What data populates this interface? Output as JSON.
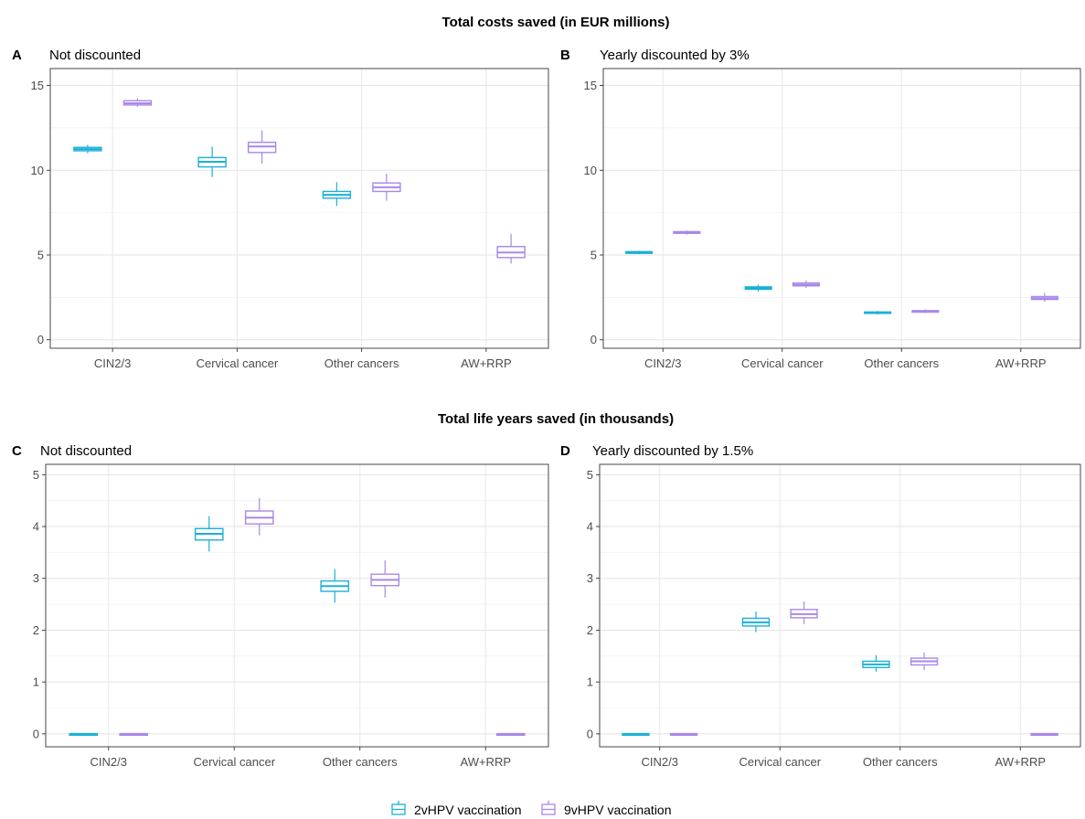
{
  "figure": {
    "title_costs": "Total costs saved (in EUR millions)",
    "title_life": "Total life years saved (in thousands)"
  },
  "legend": {
    "items": [
      {
        "label": "2vHPV vaccination",
        "color": "#1ab0d8"
      },
      {
        "label": "9vHPV vaccination",
        "color": "#a888e8"
      }
    ]
  },
  "colors": {
    "2vHPV": "#1ab0d8",
    "9vHPV": "#a888e8"
  },
  "chart_data": [
    {
      "type": "box",
      "panel": "A",
      "subtitle": "Not discounted",
      "categories": [
        "CIN2/3",
        "Cervical cancer",
        "Other cancers",
        "AW+RRP"
      ],
      "ylim": [
        -0.5,
        16
      ],
      "yticks": [
        0,
        5,
        10,
        15
      ],
      "grid": true,
      "series": [
        {
          "name": "2vHPV vaccination",
          "boxes": [
            {
              "min": 11.0,
              "q1": 11.15,
              "median": 11.25,
              "q3": 11.35,
              "max": 11.5
            },
            {
              "min": 9.6,
              "q1": 10.2,
              "median": 10.5,
              "q3": 10.75,
              "max": 11.4
            },
            {
              "min": 7.9,
              "q1": 8.35,
              "median": 8.55,
              "q3": 8.75,
              "max": 9.3
            },
            null
          ]
        },
        {
          "name": "9vHPV vaccination",
          "boxes": [
            {
              "min": 13.75,
              "q1": 13.85,
              "median": 13.95,
              "q3": 14.1,
              "max": 14.25
            },
            {
              "min": 10.4,
              "q1": 11.05,
              "median": 11.4,
              "q3": 11.65,
              "max": 12.35
            },
            {
              "min": 8.2,
              "q1": 8.75,
              "median": 9.0,
              "q3": 9.25,
              "max": 9.8
            },
            {
              "min": 4.5,
              "q1": 4.85,
              "median": 5.15,
              "q3": 5.5,
              "max": 6.25
            }
          ]
        }
      ]
    },
    {
      "type": "box",
      "panel": "B",
      "subtitle": "Yearly discounted by 3%",
      "categories": [
        "CIN2/3",
        "Cervical cancer",
        "Other cancers",
        "AW+RRP"
      ],
      "ylim": [
        -0.5,
        16
      ],
      "yticks": [
        0,
        5,
        10,
        15
      ],
      "grid": true,
      "series": [
        {
          "name": "2vHPV vaccination",
          "boxes": [
            {
              "min": 5.05,
              "q1": 5.1,
              "median": 5.15,
              "q3": 5.2,
              "max": 5.25
            },
            {
              "min": 2.85,
              "q1": 2.98,
              "median": 3.05,
              "q3": 3.12,
              "max": 3.25
            },
            {
              "min": 1.5,
              "q1": 1.56,
              "median": 1.6,
              "q3": 1.64,
              "max": 1.7
            },
            null
          ]
        },
        {
          "name": "9vHPV vaccination",
          "boxes": [
            {
              "min": 6.2,
              "q1": 6.28,
              "median": 6.33,
              "q3": 6.38,
              "max": 6.45
            },
            {
              "min": 3.05,
              "q1": 3.18,
              "median": 3.25,
              "q3": 3.35,
              "max": 3.5
            },
            {
              "min": 1.58,
              "q1": 1.63,
              "median": 1.67,
              "q3": 1.72,
              "max": 1.8
            },
            {
              "min": 2.25,
              "q1": 2.38,
              "median": 2.45,
              "q3": 2.55,
              "max": 2.75
            }
          ]
        }
      ]
    },
    {
      "type": "box",
      "panel": "C",
      "subtitle": "Not discounted",
      "categories": [
        "CIN2/3",
        "Cervical cancer",
        "Other cancers",
        "AW+RRP"
      ],
      "ylim": [
        -0.25,
        5.2
      ],
      "yticks": [
        0,
        1,
        2,
        3,
        4,
        5
      ],
      "grid": true,
      "series": [
        {
          "name": "2vHPV vaccination",
          "boxes": [
            {
              "min": 0,
              "q1": 0,
              "median": 0,
              "q3": 0,
              "max": 0
            },
            {
              "min": 3.52,
              "q1": 3.74,
              "median": 3.86,
              "q3": 3.96,
              "max": 4.2
            },
            {
              "min": 2.53,
              "q1": 2.75,
              "median": 2.85,
              "q3": 2.95,
              "max": 3.18
            },
            null
          ]
        },
        {
          "name": "9vHPV vaccination",
          "boxes": [
            {
              "min": 0,
              "q1": 0,
              "median": 0,
              "q3": 0,
              "max": 0
            },
            {
              "min": 3.83,
              "q1": 4.05,
              "median": 4.17,
              "q3": 4.3,
              "max": 4.55
            },
            {
              "min": 2.63,
              "q1": 2.86,
              "median": 2.97,
              "q3": 3.08,
              "max": 3.35
            },
            {
              "min": 0,
              "q1": 0,
              "median": 0,
              "q3": 0,
              "max": 0
            }
          ]
        }
      ]
    },
    {
      "type": "box",
      "panel": "D",
      "subtitle": "Yearly discounted by 1.5%",
      "categories": [
        "CIN2/3",
        "Cervical cancer",
        "Other cancers",
        "AW+RRP"
      ],
      "ylim": [
        -0.25,
        5.2
      ],
      "yticks": [
        0,
        1,
        2,
        3,
        4,
        5
      ],
      "grid": true,
      "series": [
        {
          "name": "2vHPV vaccination",
          "boxes": [
            {
              "min": 0,
              "q1": 0,
              "median": 0,
              "q3": 0,
              "max": 0
            },
            {
              "min": 1.96,
              "q1": 2.08,
              "median": 2.15,
              "q3": 2.23,
              "max": 2.36
            },
            {
              "min": 1.2,
              "q1": 1.28,
              "median": 1.34,
              "q3": 1.4,
              "max": 1.52
            },
            null
          ]
        },
        {
          "name": "9vHPV vaccination",
          "boxes": [
            {
              "min": 0,
              "q1": 0,
              "median": 0,
              "q3": 0,
              "max": 0
            },
            {
              "min": 2.12,
              "q1": 2.24,
              "median": 2.31,
              "q3": 2.4,
              "max": 2.55
            },
            {
              "min": 1.23,
              "q1": 1.33,
              "median": 1.4,
              "q3": 1.46,
              "max": 1.57
            },
            {
              "min": 0,
              "q1": 0,
              "median": 0,
              "q3": 0,
              "max": 0
            }
          ]
        }
      ]
    }
  ]
}
